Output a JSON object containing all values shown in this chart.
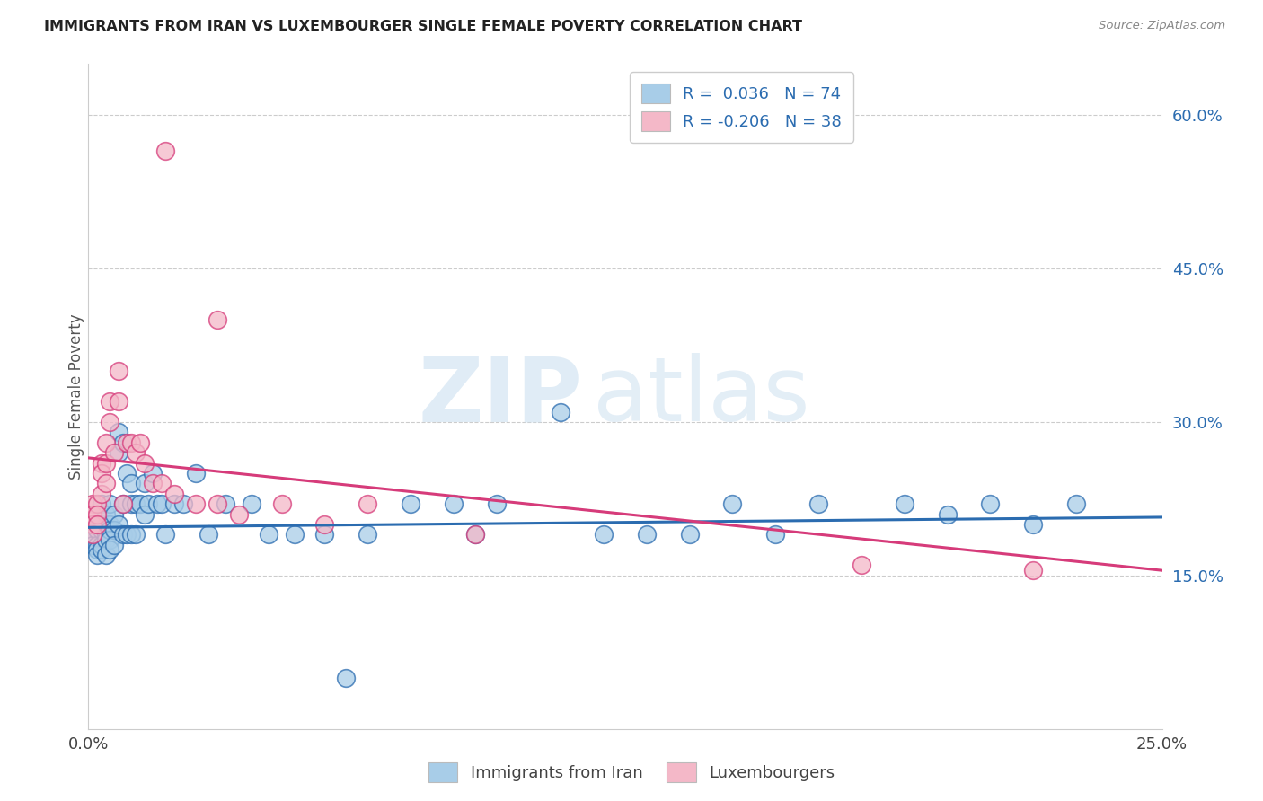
{
  "title": "IMMIGRANTS FROM IRAN VS LUXEMBOURGER SINGLE FEMALE POVERTY CORRELATION CHART",
  "source": "Source: ZipAtlas.com",
  "ylabel": "Single Female Poverty",
  "ytick_vals": [
    0.15,
    0.3,
    0.45,
    0.6
  ],
  "xlim": [
    0.0,
    0.25
  ],
  "ylim": [
    0.0,
    0.65
  ],
  "blue_color": "#a8cde8",
  "pink_color": "#f4b8c8",
  "blue_line_color": "#2b6cb0",
  "pink_line_color": "#d63b7a",
  "legend_blue_R": "0.036",
  "legend_blue_N": "74",
  "legend_pink_R": "-0.206",
  "legend_pink_N": "38",
  "watermark_zip": "ZIP",
  "watermark_atlas": "atlas",
  "blue_scatter_x": [
    0.001,
    0.001,
    0.001,
    0.001,
    0.002,
    0.002,
    0.002,
    0.002,
    0.002,
    0.003,
    0.003,
    0.003,
    0.003,
    0.003,
    0.004,
    0.004,
    0.004,
    0.004,
    0.005,
    0.005,
    0.005,
    0.005,
    0.005,
    0.006,
    0.006,
    0.006,
    0.007,
    0.007,
    0.007,
    0.008,
    0.008,
    0.008,
    0.009,
    0.009,
    0.01,
    0.01,
    0.01,
    0.011,
    0.011,
    0.012,
    0.013,
    0.013,
    0.014,
    0.015,
    0.016,
    0.017,
    0.018,
    0.02,
    0.022,
    0.025,
    0.028,
    0.032,
    0.038,
    0.042,
    0.048,
    0.055,
    0.065,
    0.075,
    0.085,
    0.095,
    0.11,
    0.13,
    0.15,
    0.17,
    0.19,
    0.21,
    0.23,
    0.2,
    0.22,
    0.14,
    0.09,
    0.12,
    0.16,
    0.06
  ],
  "blue_scatter_y": [
    0.195,
    0.19,
    0.185,
    0.18,
    0.2,
    0.195,
    0.18,
    0.175,
    0.17,
    0.22,
    0.2,
    0.195,
    0.18,
    0.175,
    0.21,
    0.19,
    0.185,
    0.17,
    0.22,
    0.2,
    0.195,
    0.185,
    0.175,
    0.21,
    0.195,
    0.18,
    0.29,
    0.27,
    0.2,
    0.28,
    0.22,
    0.19,
    0.25,
    0.19,
    0.24,
    0.22,
    0.19,
    0.22,
    0.19,
    0.22,
    0.24,
    0.21,
    0.22,
    0.25,
    0.22,
    0.22,
    0.19,
    0.22,
    0.22,
    0.25,
    0.19,
    0.22,
    0.22,
    0.19,
    0.19,
    0.19,
    0.19,
    0.22,
    0.22,
    0.22,
    0.31,
    0.19,
    0.22,
    0.22,
    0.22,
    0.22,
    0.22,
    0.21,
    0.2,
    0.19,
    0.19,
    0.19,
    0.19,
    0.05
  ],
  "pink_scatter_x": [
    0.001,
    0.001,
    0.001,
    0.001,
    0.002,
    0.002,
    0.002,
    0.003,
    0.003,
    0.003,
    0.004,
    0.004,
    0.004,
    0.005,
    0.005,
    0.006,
    0.007,
    0.007,
    0.008,
    0.009,
    0.01,
    0.011,
    0.012,
    0.013,
    0.015,
    0.017,
    0.02,
    0.025,
    0.03,
    0.035,
    0.045,
    0.055,
    0.065,
    0.09,
    0.18,
    0.22,
    0.03,
    0.018
  ],
  "pink_scatter_y": [
    0.22,
    0.21,
    0.2,
    0.19,
    0.22,
    0.21,
    0.2,
    0.26,
    0.25,
    0.23,
    0.28,
    0.26,
    0.24,
    0.32,
    0.3,
    0.27,
    0.35,
    0.32,
    0.22,
    0.28,
    0.28,
    0.27,
    0.28,
    0.26,
    0.24,
    0.24,
    0.23,
    0.22,
    0.22,
    0.21,
    0.22,
    0.2,
    0.22,
    0.19,
    0.16,
    0.155,
    0.4,
    0.565
  ],
  "blue_line_x0": 0.0,
  "blue_line_x1": 0.25,
  "blue_line_y0": 0.197,
  "blue_line_y1": 0.207,
  "pink_line_x0": 0.0,
  "pink_line_x1": 0.25,
  "pink_line_y0": 0.265,
  "pink_line_y1": 0.155
}
